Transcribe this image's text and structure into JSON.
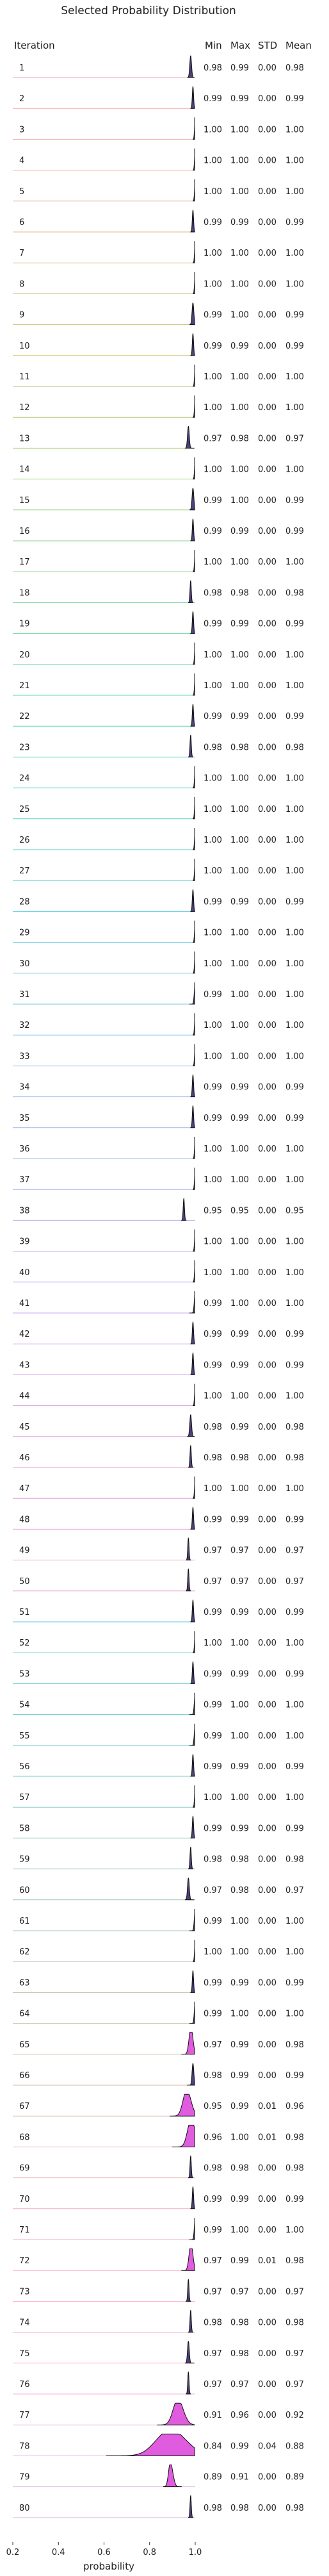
{
  "chart_data": {
    "type": "ridgeline",
    "title": "Selected Probability Distribution",
    "xlabel": "probability",
    "row_header": "Iteration",
    "stat_headers": [
      "Min",
      "Max",
      "STD",
      "Mean"
    ],
    "xlim": [
      0.2,
      1.0
    ],
    "xticks": [
      "0.2",
      "0.4",
      "0.6",
      "0.8",
      "1.0"
    ],
    "rows": [
      {
        "iteration": "1",
        "min": "0.98",
        "max": "0.99",
        "std": "0.00",
        "mean": "0.98",
        "color": "#f7a6b8"
      },
      {
        "iteration": "2",
        "min": "0.99",
        "max": "0.99",
        "std": "0.00",
        "mean": "0.99",
        "color": "#f7a8b1"
      },
      {
        "iteration": "3",
        "min": "1.00",
        "max": "1.00",
        "std": "0.00",
        "mean": "1.00",
        "color": "#f6aaa7"
      },
      {
        "iteration": "4",
        "min": "1.00",
        "max": "1.00",
        "std": "0.00",
        "mean": "1.00",
        "color": "#f3ae9d"
      },
      {
        "iteration": "5",
        "min": "1.00",
        "max": "1.00",
        "std": "0.00",
        "mean": "1.00",
        "color": "#efb293"
      },
      {
        "iteration": "6",
        "min": "0.99",
        "max": "0.99",
        "std": "0.00",
        "mean": "0.99",
        "color": "#e9b68a"
      },
      {
        "iteration": "7",
        "min": "1.00",
        "max": "1.00",
        "std": "0.00",
        "mean": "1.00",
        "color": "#e2ba82"
      },
      {
        "iteration": "8",
        "min": "1.00",
        "max": "1.00",
        "std": "0.00",
        "mean": "1.00",
        "color": "#dabe7c"
      },
      {
        "iteration": "9",
        "min": "0.99",
        "max": "1.00",
        "std": "0.00",
        "mean": "0.99",
        "color": "#d1c277"
      },
      {
        "iteration": "10",
        "min": "0.99",
        "max": "0.99",
        "std": "0.00",
        "mean": "0.99",
        "color": "#c8c574"
      },
      {
        "iteration": "11",
        "min": "1.00",
        "max": "1.00",
        "std": "0.00",
        "mean": "1.00",
        "color": "#bec873"
      },
      {
        "iteration": "12",
        "min": "1.00",
        "max": "1.00",
        "std": "0.00",
        "mean": "1.00",
        "color": "#b4cb74"
      },
      {
        "iteration": "13",
        "min": "0.97",
        "max": "0.98",
        "std": "0.00",
        "mean": "0.97",
        "color": "#a9cd77"
      },
      {
        "iteration": "14",
        "min": "1.00",
        "max": "1.00",
        "std": "0.00",
        "mean": "1.00",
        "color": "#9fcf7b"
      },
      {
        "iteration": "15",
        "min": "0.99",
        "max": "1.00",
        "std": "0.00",
        "mean": "0.99",
        "color": "#95d181"
      },
      {
        "iteration": "16",
        "min": "0.99",
        "max": "0.99",
        "std": "0.00",
        "mean": "0.99",
        "color": "#8bd288"
      },
      {
        "iteration": "17",
        "min": "1.00",
        "max": "1.00",
        "std": "0.00",
        "mean": "1.00",
        "color": "#82d38f"
      },
      {
        "iteration": "18",
        "min": "0.98",
        "max": "0.98",
        "std": "0.00",
        "mean": "0.98",
        "color": "#79d497"
      },
      {
        "iteration": "19",
        "min": "0.99",
        "max": "0.99",
        "std": "0.00",
        "mean": "0.99",
        "color": "#71d59f"
      },
      {
        "iteration": "20",
        "min": "1.00",
        "max": "1.00",
        "std": "0.00",
        "mean": "1.00",
        "color": "#6ad5a7"
      },
      {
        "iteration": "21",
        "min": "1.00",
        "max": "1.00",
        "std": "0.00",
        "mean": "1.00",
        "color": "#64d5af"
      },
      {
        "iteration": "22",
        "min": "0.99",
        "max": "0.99",
        "std": "0.00",
        "mean": "0.99",
        "color": "#5fd5b6"
      },
      {
        "iteration": "23",
        "min": "0.98",
        "max": "0.98",
        "std": "0.00",
        "mean": "0.98",
        "color": "#5cd4bd"
      },
      {
        "iteration": "24",
        "min": "1.00",
        "max": "1.00",
        "std": "0.00",
        "mean": "1.00",
        "color": "#5ad3c4"
      },
      {
        "iteration": "25",
        "min": "1.00",
        "max": "1.00",
        "std": "0.00",
        "mean": "1.00",
        "color": "#5ad2cb"
      },
      {
        "iteration": "26",
        "min": "1.00",
        "max": "1.00",
        "std": "0.00",
        "mean": "1.00",
        "color": "#5bd1d1"
      },
      {
        "iteration": "27",
        "min": "1.00",
        "max": "1.00",
        "std": "0.00",
        "mean": "1.00",
        "color": "#5ecfd7"
      },
      {
        "iteration": "28",
        "min": "0.99",
        "max": "0.99",
        "std": "0.00",
        "mean": "0.99",
        "color": "#62cddd"
      },
      {
        "iteration": "29",
        "min": "1.00",
        "max": "1.00",
        "std": "0.00",
        "mean": "1.00",
        "color": "#68cbe2"
      },
      {
        "iteration": "30",
        "min": "1.00",
        "max": "1.00",
        "std": "0.00",
        "mean": "1.00",
        "color": "#6fc9e6"
      },
      {
        "iteration": "31",
        "min": "0.99",
        "max": "1.00",
        "std": "0.00",
        "mean": "1.00",
        "color": "#77c6ea"
      },
      {
        "iteration": "32",
        "min": "1.00",
        "max": "1.00",
        "std": "0.00",
        "mean": "1.00",
        "color": "#7fc3ee"
      },
      {
        "iteration": "33",
        "min": "1.00",
        "max": "1.00",
        "std": "0.00",
        "mean": "1.00",
        "color": "#88c0f0"
      },
      {
        "iteration": "34",
        "min": "0.99",
        "max": "0.99",
        "std": "0.00",
        "mean": "0.99",
        "color": "#91bdf2"
      },
      {
        "iteration": "35",
        "min": "0.99",
        "max": "0.99",
        "std": "0.00",
        "mean": "0.99",
        "color": "#9ab9f4"
      },
      {
        "iteration": "36",
        "min": "1.00",
        "max": "1.00",
        "std": "0.00",
        "mean": "1.00",
        "color": "#a3b5f5"
      },
      {
        "iteration": "37",
        "min": "1.00",
        "max": "1.00",
        "std": "0.00",
        "mean": "1.00",
        "color": "#acb2f5"
      },
      {
        "iteration": "38",
        "min": "0.95",
        "max": "0.95",
        "std": "0.00",
        "mean": "0.95",
        "color": "#b4aef5"
      },
      {
        "iteration": "39",
        "min": "1.00",
        "max": "1.00",
        "std": "0.00",
        "mean": "1.00",
        "color": "#bcaaf4"
      },
      {
        "iteration": "40",
        "min": "1.00",
        "max": "1.00",
        "std": "0.00",
        "mean": "1.00",
        "color": "#c4a7f2"
      },
      {
        "iteration": "41",
        "min": "0.99",
        "max": "1.00",
        "std": "0.00",
        "mean": "1.00",
        "color": "#cba4f0"
      },
      {
        "iteration": "42",
        "min": "0.99",
        "max": "0.99",
        "std": "0.00",
        "mean": "0.99",
        "color": "#d2a1ed"
      },
      {
        "iteration": "43",
        "min": "0.99",
        "max": "0.99",
        "std": "0.00",
        "mean": "0.99",
        "color": "#d89fea"
      },
      {
        "iteration": "44",
        "min": "1.00",
        "max": "1.00",
        "std": "0.00",
        "mean": "1.00",
        "color": "#dd9ee6"
      },
      {
        "iteration": "45",
        "min": "0.98",
        "max": "0.99",
        "std": "0.00",
        "mean": "0.98",
        "color": "#e29de2"
      },
      {
        "iteration": "46",
        "min": "0.98",
        "max": "0.98",
        "std": "0.00",
        "mean": "0.98",
        "color": "#e69cdd"
      },
      {
        "iteration": "47",
        "min": "1.00",
        "max": "1.00",
        "std": "0.00",
        "mean": "1.00",
        "color": "#e99cd8"
      },
      {
        "iteration": "48",
        "min": "0.99",
        "max": "0.99",
        "std": "0.00",
        "mean": "0.99",
        "color": "#eb9dd3"
      },
      {
        "iteration": "49",
        "min": "0.97",
        "max": "0.97",
        "std": "0.00",
        "mean": "0.97",
        "color": "#ed9ece"
      },
      {
        "iteration": "50",
        "min": "0.97",
        "max": "0.97",
        "std": "0.00",
        "mean": "0.97",
        "color": "#ee9fc8"
      },
      {
        "iteration": "51",
        "min": "0.99",
        "max": "0.99",
        "std": "0.00",
        "mean": "0.99",
        "color": "#5fc8d8"
      },
      {
        "iteration": "52",
        "min": "1.00",
        "max": "1.00",
        "std": "0.00",
        "mean": "1.00",
        "color": "#62c9d6"
      },
      {
        "iteration": "53",
        "min": "0.99",
        "max": "0.99",
        "std": "0.00",
        "mean": "0.99",
        "color": "#66cad3"
      },
      {
        "iteration": "54",
        "min": "0.99",
        "max": "1.00",
        "std": "0.00",
        "mean": "1.00",
        "color": "#6bcad0"
      },
      {
        "iteration": "55",
        "min": "0.99",
        "max": "1.00",
        "std": "0.00",
        "mean": "1.00",
        "color": "#72cbcc"
      },
      {
        "iteration": "56",
        "min": "0.99",
        "max": "0.99",
        "std": "0.00",
        "mean": "0.99",
        "color": "#7acbc7"
      },
      {
        "iteration": "57",
        "min": "1.00",
        "max": "1.00",
        "std": "0.00",
        "mean": "1.00",
        "color": "#83cbc2"
      },
      {
        "iteration": "58",
        "min": "0.99",
        "max": "0.99",
        "std": "0.00",
        "mean": "0.99",
        "color": "#8ccabd"
      },
      {
        "iteration": "59",
        "min": "0.98",
        "max": "0.98",
        "std": "0.00",
        "mean": "0.98",
        "color": "#96c9b8"
      },
      {
        "iteration": "60",
        "min": "0.97",
        "max": "0.98",
        "std": "0.00",
        "mean": "0.97",
        "color": "#a0c8b4"
      },
      {
        "iteration": "61",
        "min": "0.99",
        "max": "1.00",
        "std": "0.00",
        "mean": "1.00",
        "color": "#aac6b0"
      },
      {
        "iteration": "62",
        "min": "1.00",
        "max": "1.00",
        "std": "0.00",
        "mean": "1.00",
        "color": "#b4c4ad"
      },
      {
        "iteration": "63",
        "min": "0.99",
        "max": "0.99",
        "std": "0.00",
        "mean": "0.99",
        "color": "#bec2ab"
      },
      {
        "iteration": "64",
        "min": "0.99",
        "max": "1.00",
        "std": "0.00",
        "mean": "1.00",
        "color": "#c8bfaa"
      },
      {
        "iteration": "65",
        "min": "0.97",
        "max": "0.99",
        "std": "0.00",
        "mean": "0.98",
        "color": "#d1bcab"
      },
      {
        "iteration": "66",
        "min": "0.98",
        "max": "0.99",
        "std": "0.00",
        "mean": "0.99",
        "color": "#dab9ac"
      },
      {
        "iteration": "67",
        "min": "0.95",
        "max": "0.99",
        "std": "0.01",
        "mean": "0.96",
        "color": "#e2b6af"
      },
      {
        "iteration": "68",
        "min": "0.96",
        "max": "1.00",
        "std": "0.01",
        "mean": "0.98",
        "color": "#e9b3b3"
      },
      {
        "iteration": "69",
        "min": "0.98",
        "max": "0.98",
        "std": "0.00",
        "mean": "0.98",
        "color": "#efb1b8"
      },
      {
        "iteration": "70",
        "min": "0.99",
        "max": "0.99",
        "std": "0.00",
        "mean": "0.99",
        "color": "#f3afbe"
      },
      {
        "iteration": "71",
        "min": "0.99",
        "max": "1.00",
        "std": "0.00",
        "mean": "1.00",
        "color": "#f6aec4"
      },
      {
        "iteration": "72",
        "min": "0.97",
        "max": "0.99",
        "std": "0.01",
        "mean": "0.98",
        "color": "#f8adca"
      },
      {
        "iteration": "73",
        "min": "0.97",
        "max": "0.97",
        "std": "0.00",
        "mean": "0.97",
        "color": "#f9add0"
      },
      {
        "iteration": "74",
        "min": "0.98",
        "max": "0.98",
        "std": "0.00",
        "mean": "0.98",
        "color": "#f9aed6"
      },
      {
        "iteration": "75",
        "min": "0.97",
        "max": "0.98",
        "std": "0.00",
        "mean": "0.97",
        "color": "#f8b0db"
      },
      {
        "iteration": "76",
        "min": "0.97",
        "max": "0.97",
        "std": "0.00",
        "mean": "0.97",
        "color": "#f6b2e0"
      },
      {
        "iteration": "77",
        "min": "0.91",
        "max": "0.96",
        "std": "0.00",
        "mean": "0.92",
        "color": "#f3b5e4"
      },
      {
        "iteration": "78",
        "min": "0.84",
        "max": "0.99",
        "std": "0.04",
        "mean": "0.88",
        "color": "#efb8e8"
      },
      {
        "iteration": "79",
        "min": "0.89",
        "max": "0.91",
        "std": "0.00",
        "mean": "0.89",
        "color": "#eabcea"
      },
      {
        "iteration": "80",
        "min": "0.98",
        "max": "0.98",
        "std": "0.00",
        "mean": "0.98",
        "color": "#e4c0ec"
      }
    ]
  }
}
